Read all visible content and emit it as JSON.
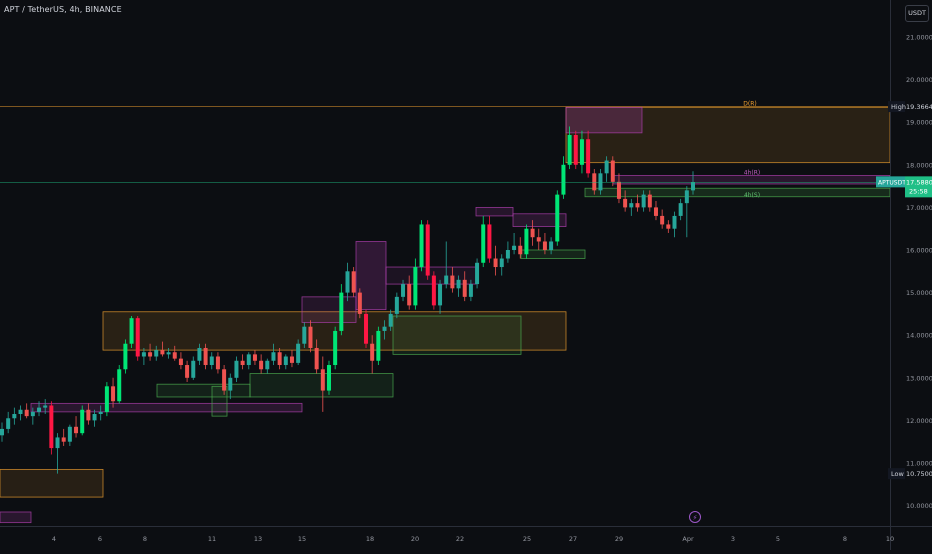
{
  "header": {
    "title": "APT / TetherUS, 4h, BINANCE",
    "currency_button": "USDT"
  },
  "colors": {
    "background": "#0c0e12",
    "up": "#26a69a",
    "down": "#ef5350",
    "bright_up": "#00e676",
    "bright_down": "#ff1744",
    "ob_orange": "#f0a030",
    "ob_purple": "#b040b0",
    "ob_green": "#4caf50",
    "price_line": "#1fbf86"
  },
  "price_axis": {
    "ticks": [
      "21.0000",
      "20.0000",
      "19.0000",
      "18.0000",
      "17.0000",
      "16.0000",
      "15.0000",
      "14.0000",
      "13.0000",
      "12.0000",
      "11.0000",
      "10.0000"
    ],
    "high_label": "High",
    "high_value": "19.3664",
    "low_label": "Low",
    "low_value": "10.7500",
    "current_symbol": "APTUSDT",
    "current_price": "17.5880",
    "countdown": "25:58"
  },
  "time_axis": {
    "labels": [
      "4",
      "6",
      "8",
      "11",
      "13",
      "15",
      "18",
      "20",
      "22",
      "25",
      "27",
      "29",
      "Apr",
      "3",
      "5",
      "8",
      "10"
    ]
  },
  "annotations": {
    "top_zone_label": "D(R)",
    "resistance_label": "4h(R)",
    "support_label": "4h(S)",
    "event_marker": "⚡"
  },
  "chart_data": {
    "type": "candlestick",
    "symbol": "APT/USDT",
    "interval": "4h",
    "exchange": "BINANCE",
    "ylim": [
      9.7,
      21.6
    ],
    "x_labels": [
      "4",
      "6",
      "8",
      "11",
      "13",
      "15",
      "18",
      "20",
      "22",
      "25",
      "27",
      "29",
      "Apr",
      "3",
      "5",
      "8",
      "10"
    ],
    "current_price": 17.588,
    "high": 19.3664,
    "low": 10.75,
    "candles": [
      {
        "o": 11.65,
        "h": 11.95,
        "l": 11.5,
        "c": 11.8
      },
      {
        "o": 11.8,
        "h": 12.2,
        "l": 11.7,
        "c": 12.05
      },
      {
        "o": 12.05,
        "h": 12.3,
        "l": 11.9,
        "c": 12.15
      },
      {
        "o": 12.15,
        "h": 12.35,
        "l": 12.0,
        "c": 12.25
      },
      {
        "o": 12.25,
        "h": 12.4,
        "l": 12.05,
        "c": 12.1
      },
      {
        "o": 12.1,
        "h": 12.3,
        "l": 11.9,
        "c": 12.2
      },
      {
        "o": 12.2,
        "h": 12.45,
        "l": 12.1,
        "c": 12.3
      },
      {
        "o": 12.3,
        "h": 12.5,
        "l": 12.15,
        "c": 12.35
      },
      {
        "o": 12.35,
        "h": 12.45,
        "l": 11.2,
        "c": 11.35
      },
      {
        "o": 11.35,
        "h": 11.7,
        "l": 10.75,
        "c": 11.6
      },
      {
        "o": 11.6,
        "h": 11.8,
        "l": 11.4,
        "c": 11.5
      },
      {
        "o": 11.5,
        "h": 11.9,
        "l": 11.4,
        "c": 11.85
      },
      {
        "o": 11.85,
        "h": 12.1,
        "l": 11.6,
        "c": 11.7
      },
      {
        "o": 11.7,
        "h": 12.35,
        "l": 11.65,
        "c": 12.25
      },
      {
        "o": 12.25,
        "h": 12.4,
        "l": 11.9,
        "c": 12.0
      },
      {
        "o": 12.0,
        "h": 12.25,
        "l": 11.85,
        "c": 12.15
      },
      {
        "o": 12.15,
        "h": 12.35,
        "l": 12.0,
        "c": 12.2
      },
      {
        "o": 12.2,
        "h": 12.9,
        "l": 12.1,
        "c": 12.8
      },
      {
        "o": 12.8,
        "h": 13.0,
        "l": 12.3,
        "c": 12.45
      },
      {
        "o": 12.45,
        "h": 13.3,
        "l": 12.4,
        "c": 13.2
      },
      {
        "o": 13.2,
        "h": 13.9,
        "l": 13.1,
        "c": 13.8
      },
      {
        "o": 13.8,
        "h": 14.45,
        "l": 13.7,
        "c": 14.4
      },
      {
        "o": 14.4,
        "h": 14.45,
        "l": 13.4,
        "c": 13.5
      },
      {
        "o": 13.5,
        "h": 13.7,
        "l": 13.3,
        "c": 13.6
      },
      {
        "o": 13.6,
        "h": 13.8,
        "l": 13.4,
        "c": 13.5
      },
      {
        "o": 13.5,
        "h": 13.75,
        "l": 13.4,
        "c": 13.65
      },
      {
        "o": 13.65,
        "h": 13.85,
        "l": 13.5,
        "c": 13.55
      },
      {
        "o": 13.55,
        "h": 13.7,
        "l": 13.45,
        "c": 13.6
      },
      {
        "o": 13.6,
        "h": 13.75,
        "l": 13.4,
        "c": 13.45
      },
      {
        "o": 13.45,
        "h": 13.6,
        "l": 13.2,
        "c": 13.3
      },
      {
        "o": 13.3,
        "h": 13.4,
        "l": 12.9,
        "c": 13.0
      },
      {
        "o": 13.0,
        "h": 13.5,
        "l": 12.95,
        "c": 13.4
      },
      {
        "o": 13.4,
        "h": 13.8,
        "l": 13.3,
        "c": 13.7
      },
      {
        "o": 13.7,
        "h": 13.8,
        "l": 13.2,
        "c": 13.3
      },
      {
        "o": 13.3,
        "h": 13.6,
        "l": 13.2,
        "c": 13.5
      },
      {
        "o": 13.5,
        "h": 13.6,
        "l": 13.1,
        "c": 13.2
      },
      {
        "o": 13.2,
        "h": 13.3,
        "l": 12.6,
        "c": 12.7
      },
      {
        "o": 12.7,
        "h": 13.1,
        "l": 12.5,
        "c": 13.0
      },
      {
        "o": 13.0,
        "h": 13.5,
        "l": 12.9,
        "c": 13.4
      },
      {
        "o": 13.4,
        "h": 13.55,
        "l": 13.2,
        "c": 13.3
      },
      {
        "o": 13.3,
        "h": 13.6,
        "l": 13.2,
        "c": 13.55
      },
      {
        "o": 13.55,
        "h": 13.65,
        "l": 13.3,
        "c": 13.4
      },
      {
        "o": 13.4,
        "h": 13.55,
        "l": 13.1,
        "c": 13.2
      },
      {
        "o": 13.2,
        "h": 13.45,
        "l": 13.1,
        "c": 13.4
      },
      {
        "o": 13.4,
        "h": 13.8,
        "l": 13.3,
        "c": 13.6
      },
      {
        "o": 13.6,
        "h": 13.7,
        "l": 13.2,
        "c": 13.3
      },
      {
        "o": 13.3,
        "h": 13.55,
        "l": 13.2,
        "c": 13.5
      },
      {
        "o": 13.5,
        "h": 13.65,
        "l": 13.25,
        "c": 13.35
      },
      {
        "o": 13.35,
        "h": 13.9,
        "l": 13.3,
        "c": 13.8
      },
      {
        "o": 13.8,
        "h": 14.3,
        "l": 13.7,
        "c": 14.2
      },
      {
        "o": 14.2,
        "h": 14.35,
        "l": 13.6,
        "c": 13.7
      },
      {
        "o": 13.7,
        "h": 13.9,
        "l": 13.1,
        "c": 13.2
      },
      {
        "o": 13.2,
        "h": 13.5,
        "l": 12.2,
        "c": 12.7
      },
      {
        "o": 12.7,
        "h": 13.4,
        "l": 12.6,
        "c": 13.3
      },
      {
        "o": 13.3,
        "h": 14.2,
        "l": 13.2,
        "c": 14.1
      },
      {
        "o": 14.1,
        "h": 15.2,
        "l": 14.0,
        "c": 15.0
      },
      {
        "o": 15.0,
        "h": 15.7,
        "l": 14.8,
        "c": 15.5
      },
      {
        "o": 15.5,
        "h": 15.6,
        "l": 14.9,
        "c": 15.0
      },
      {
        "o": 15.0,
        "h": 15.1,
        "l": 14.4,
        "c": 14.5
      },
      {
        "o": 14.5,
        "h": 14.6,
        "l": 13.7,
        "c": 13.8
      },
      {
        "o": 13.8,
        "h": 14.0,
        "l": 13.1,
        "c": 13.4
      },
      {
        "o": 13.4,
        "h": 14.2,
        "l": 13.3,
        "c": 14.1
      },
      {
        "o": 14.1,
        "h": 14.35,
        "l": 13.9,
        "c": 14.2
      },
      {
        "o": 14.2,
        "h": 14.6,
        "l": 14.1,
        "c": 14.5
      },
      {
        "o": 14.5,
        "h": 15.0,
        "l": 14.4,
        "c": 14.9
      },
      {
        "o": 14.9,
        "h": 15.3,
        "l": 14.8,
        "c": 15.2
      },
      {
        "o": 15.2,
        "h": 15.4,
        "l": 14.6,
        "c": 14.7
      },
      {
        "o": 14.7,
        "h": 15.8,
        "l": 14.6,
        "c": 15.6
      },
      {
        "o": 15.6,
        "h": 16.7,
        "l": 15.5,
        "c": 16.6
      },
      {
        "o": 16.6,
        "h": 16.7,
        "l": 15.3,
        "c": 15.4
      },
      {
        "o": 15.4,
        "h": 15.5,
        "l": 14.6,
        "c": 14.7
      },
      {
        "o": 14.7,
        "h": 15.3,
        "l": 14.5,
        "c": 15.2
      },
      {
        "o": 15.2,
        "h": 16.2,
        "l": 15.1,
        "c": 15.4
      },
      {
        "o": 15.4,
        "h": 15.6,
        "l": 15.0,
        "c": 15.1
      },
      {
        "o": 15.1,
        "h": 15.4,
        "l": 14.9,
        "c": 15.3
      },
      {
        "o": 15.3,
        "h": 15.5,
        "l": 14.8,
        "c": 14.9
      },
      {
        "o": 14.9,
        "h": 15.3,
        "l": 14.8,
        "c": 15.2
      },
      {
        "o": 15.2,
        "h": 15.8,
        "l": 15.1,
        "c": 15.7
      },
      {
        "o": 15.7,
        "h": 16.8,
        "l": 15.6,
        "c": 16.6
      },
      {
        "o": 16.6,
        "h": 16.8,
        "l": 15.7,
        "c": 15.8
      },
      {
        "o": 15.8,
        "h": 16.1,
        "l": 15.4,
        "c": 15.6
      },
      {
        "o": 15.6,
        "h": 15.9,
        "l": 15.4,
        "c": 15.8
      },
      {
        "o": 15.8,
        "h": 16.2,
        "l": 15.7,
        "c": 16.0
      },
      {
        "o": 16.0,
        "h": 16.4,
        "l": 15.9,
        "c": 16.1
      },
      {
        "o": 16.1,
        "h": 16.3,
        "l": 15.8,
        "c": 15.9
      },
      {
        "o": 15.9,
        "h": 16.6,
        "l": 15.8,
        "c": 16.5
      },
      {
        "o": 16.5,
        "h": 16.7,
        "l": 16.1,
        "c": 16.3
      },
      {
        "o": 16.3,
        "h": 16.5,
        "l": 16.0,
        "c": 16.2
      },
      {
        "o": 16.2,
        "h": 16.4,
        "l": 15.9,
        "c": 16.0
      },
      {
        "o": 16.0,
        "h": 16.3,
        "l": 15.9,
        "c": 16.2
      },
      {
        "o": 16.2,
        "h": 17.4,
        "l": 16.1,
        "c": 17.3
      },
      {
        "o": 17.3,
        "h": 18.2,
        "l": 17.2,
        "c": 18.0
      },
      {
        "o": 18.0,
        "h": 18.9,
        "l": 17.9,
        "c": 18.7
      },
      {
        "o": 18.7,
        "h": 18.8,
        "l": 17.9,
        "c": 18.0
      },
      {
        "o": 18.0,
        "h": 18.8,
        "l": 17.8,
        "c": 18.6
      },
      {
        "o": 18.6,
        "h": 18.8,
        "l": 17.7,
        "c": 17.8
      },
      {
        "o": 17.8,
        "h": 17.9,
        "l": 17.3,
        "c": 17.4
      },
      {
        "o": 17.4,
        "h": 17.9,
        "l": 17.3,
        "c": 17.8
      },
      {
        "o": 17.8,
        "h": 18.2,
        "l": 17.6,
        "c": 18.1
      },
      {
        "o": 18.1,
        "h": 18.2,
        "l": 17.5,
        "c": 17.6
      },
      {
        "o": 17.6,
        "h": 17.8,
        "l": 17.1,
        "c": 17.2
      },
      {
        "o": 17.2,
        "h": 17.4,
        "l": 16.9,
        "c": 17.0
      },
      {
        "o": 17.0,
        "h": 17.2,
        "l": 16.8,
        "c": 17.1
      },
      {
        "o": 17.1,
        "h": 17.3,
        "l": 16.9,
        "c": 17.0
      },
      {
        "o": 17.0,
        "h": 17.4,
        "l": 16.9,
        "c": 17.3
      },
      {
        "o": 17.3,
        "h": 17.4,
        "l": 16.9,
        "c": 17.0
      },
      {
        "o": 17.0,
        "h": 17.15,
        "l": 16.7,
        "c": 16.8
      },
      {
        "o": 16.8,
        "h": 16.95,
        "l": 16.5,
        "c": 16.6
      },
      {
        "o": 16.6,
        "h": 16.7,
        "l": 16.4,
        "c": 16.5
      },
      {
        "o": 16.5,
        "h": 16.9,
        "l": 16.3,
        "c": 16.8
      },
      {
        "o": 16.8,
        "h": 17.2,
        "l": 16.7,
        "c": 17.1
      },
      {
        "o": 17.1,
        "h": 17.5,
        "l": 16.3,
        "c": 17.4
      },
      {
        "o": 17.4,
        "h": 17.85,
        "l": 17.3,
        "c": 17.59
      }
    ]
  }
}
